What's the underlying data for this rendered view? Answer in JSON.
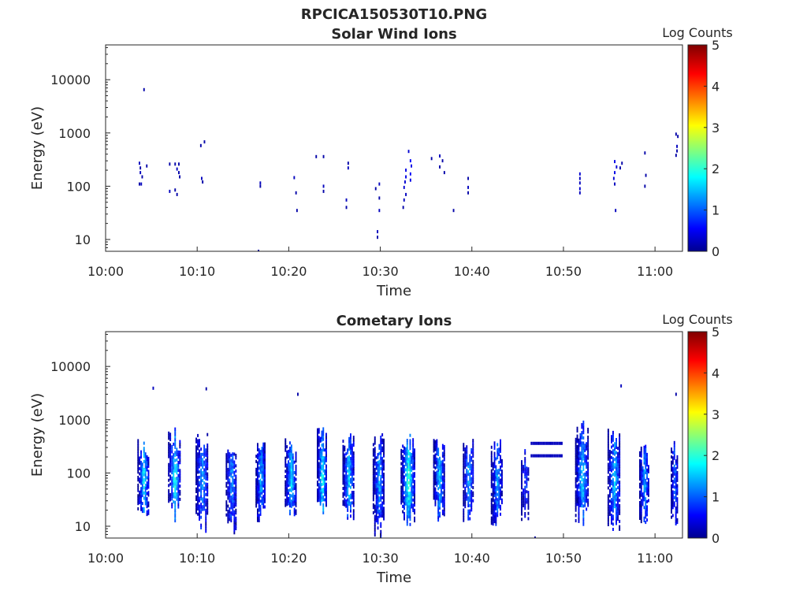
{
  "figure": {
    "filename_title": "RPCICA150530T10.PNG"
  },
  "chart_data": [
    {
      "type": "heatmap",
      "title": "Solar Wind Ions",
      "xlabel": "Time",
      "ylabel": "Energy (eV)",
      "x_ticks": [
        "10:00",
        "10:10",
        "10:20",
        "10:30",
        "10:40",
        "10:50",
        "11:00"
      ],
      "x_tick_minutes": [
        0,
        10,
        20,
        30,
        40,
        50,
        60
      ],
      "xlim_minutes": [
        0,
        63
      ],
      "y_scale": "log",
      "y_ticks": [
        10,
        100,
        1000,
        10000
      ],
      "ylim": [
        6,
        45000
      ],
      "colorbar": {
        "label": "Log Counts",
        "ticks": [
          0,
          1,
          2,
          3,
          4,
          5
        ],
        "range": [
          0,
          5
        ],
        "colormap": "jet"
      },
      "grid": false,
      "cells": [
        [
          4.2,
          6500,
          0.2
        ],
        [
          3.7,
          270,
          0.3
        ],
        [
          3.8,
          220,
          0.2
        ],
        [
          3.8,
          180,
          0.3
        ],
        [
          4.0,
          150,
          0.2
        ],
        [
          3.7,
          110,
          0.2
        ],
        [
          3.9,
          110,
          0.3
        ],
        [
          4.5,
          240,
          0.2
        ],
        [
          7.0,
          260,
          0.2
        ],
        [
          7.6,
          260,
          0.2
        ],
        [
          8.0,
          260,
          0.2
        ],
        [
          7.8,
          210,
          0.3
        ],
        [
          8.0,
          180,
          0.2
        ],
        [
          8.1,
          150,
          0.2
        ],
        [
          7.0,
          80,
          0.3
        ],
        [
          7.6,
          85,
          0.2
        ],
        [
          7.8,
          70,
          0.2
        ],
        [
          10.4,
          580,
          0.2
        ],
        [
          10.8,
          680,
          0.2
        ],
        [
          10.5,
          140,
          0.3
        ],
        [
          10.6,
          120,
          0.2
        ],
        [
          16.9,
          115,
          0.3
        ],
        [
          16.9,
          100,
          0.2
        ],
        [
          16.7,
          6,
          0.2
        ],
        [
          20.6,
          145,
          0.3
        ],
        [
          20.8,
          75,
          0.2
        ],
        [
          20.9,
          35,
          0.2
        ],
        [
          23.0,
          360,
          0.2
        ],
        [
          23.8,
          360,
          0.2
        ],
        [
          23.8,
          100,
          0.3
        ],
        [
          23.8,
          80,
          0.2
        ],
        [
          26.5,
          270,
          0.2
        ],
        [
          26.5,
          220,
          0.3
        ],
        [
          26.3,
          55,
          0.3
        ],
        [
          26.3,
          40,
          0.2
        ],
        [
          29.5,
          90,
          0.2
        ],
        [
          29.9,
          110,
          0.3
        ],
        [
          29.9,
          60,
          0.2
        ],
        [
          29.9,
          35,
          0.3
        ],
        [
          29.7,
          14,
          0.3
        ],
        [
          29.7,
          11,
          0.2
        ],
        [
          32.8,
          200,
          0.5
        ],
        [
          32.8,
          150,
          0.5
        ],
        [
          32.7,
          120,
          0.4
        ],
        [
          33.3,
          300,
          0.6
        ],
        [
          33.4,
          240,
          0.5
        ],
        [
          33.3,
          170,
          0.6
        ],
        [
          33.3,
          130,
          0.5
        ],
        [
          32.6,
          95,
          0.4
        ],
        [
          32.8,
          70,
          0.3
        ],
        [
          32.6,
          55,
          0.3
        ],
        [
          33.1,
          450,
          0.4
        ],
        [
          32.5,
          40,
          0.2
        ],
        [
          35.6,
          330,
          0.2
        ],
        [
          36.5,
          370,
          0.3
        ],
        [
          36.8,
          300,
          0.2
        ],
        [
          36.5,
          230,
          0.2
        ],
        [
          37.0,
          180,
          0.2
        ],
        [
          38.0,
          35,
          0.2
        ],
        [
          39.6,
          140,
          0.2
        ],
        [
          39.6,
          95,
          0.3
        ],
        [
          39.6,
          75,
          0.2
        ],
        [
          51.8,
          170,
          0.4
        ],
        [
          51.8,
          140,
          0.3
        ],
        [
          51.8,
          115,
          0.3
        ],
        [
          51.8,
          90,
          0.4
        ],
        [
          51.8,
          75,
          0.3
        ],
        [
          55.6,
          290,
          0.5
        ],
        [
          55.8,
          230,
          0.4
        ],
        [
          55.6,
          180,
          0.5
        ],
        [
          55.5,
          140,
          0.4
        ],
        [
          55.6,
          110,
          0.3
        ],
        [
          56.4,
          270,
          0.2
        ],
        [
          56.2,
          220,
          0.2
        ],
        [
          55.7,
          35,
          0.3
        ],
        [
          58.9,
          420,
          0.2
        ],
        [
          59.0,
          160,
          0.2
        ],
        [
          58.9,
          100,
          0.2
        ],
        [
          62.3,
          950,
          0.2
        ],
        [
          62.5,
          860,
          0.2
        ],
        [
          62.4,
          560,
          0.3
        ],
        [
          62.4,
          460,
          0.2
        ],
        [
          62.3,
          380,
          0.2
        ]
      ]
    },
    {
      "type": "heatmap",
      "title": "Cometary Ions",
      "xlabel": "Time",
      "ylabel": "Energy (eV)",
      "x_ticks": [
        "10:00",
        "10:10",
        "10:20",
        "10:30",
        "10:40",
        "10:50",
        "11:00"
      ],
      "x_tick_minutes": [
        0,
        10,
        20,
        30,
        40,
        50,
        60
      ],
      "xlim_minutes": [
        0,
        63
      ],
      "y_scale": "log",
      "y_ticks": [
        10,
        100,
        1000,
        10000
      ],
      "ylim": [
        6,
        45000
      ],
      "colorbar": {
        "label": "Log Counts",
        "ticks": [
          0,
          1,
          2,
          3,
          4,
          5
        ],
        "range": [
          0,
          5
        ],
        "colormap": "jet"
      },
      "grid": false,
      "bursts": [
        {
          "t": 4.2,
          "width": 1.3,
          "emin": 10,
          "emax": 450,
          "peak": 1.9
        },
        {
          "t": 7.6,
          "width": 1.4,
          "emin": 12,
          "emax": 700,
          "peak": 2.0
        },
        {
          "t": 10.6,
          "width": 1.4,
          "emin": 8,
          "emax": 600,
          "peak": 1.6
        },
        {
          "t": 13.8,
          "width": 1.2,
          "emin": 7,
          "emax": 400,
          "peak": 1.5
        },
        {
          "t": 17.0,
          "width": 1.1,
          "emin": 10,
          "emax": 500,
          "peak": 1.6
        },
        {
          "t": 20.3,
          "width": 1.3,
          "emin": 10,
          "emax": 450,
          "peak": 1.8
        },
        {
          "t": 23.7,
          "width": 1.1,
          "emin": 12,
          "emax": 800,
          "peak": 2.2
        },
        {
          "t": 26.6,
          "width": 1.3,
          "emin": 10,
          "emax": 550,
          "peak": 1.8
        },
        {
          "t": 29.9,
          "width": 1.3,
          "emin": 6,
          "emax": 600,
          "peak": 1.6
        },
        {
          "t": 33.1,
          "width": 1.6,
          "emin": 10,
          "emax": 600,
          "peak": 2.3
        },
        {
          "t": 36.5,
          "width": 1.3,
          "emin": 12,
          "emax": 450,
          "peak": 1.7
        },
        {
          "t": 39.7,
          "width": 1.2,
          "emin": 12,
          "emax": 450,
          "peak": 1.6
        },
        {
          "t": 42.8,
          "width": 1.3,
          "emin": 10,
          "emax": 450,
          "peak": 1.5
        },
        {
          "t": 45.9,
          "width": 0.9,
          "emin": 10,
          "emax": 300,
          "peak": 1.0
        },
        {
          "t": 52.1,
          "width": 1.5,
          "emin": 10,
          "emax": 1000,
          "peak": 1.9
        },
        {
          "t": 55.6,
          "width": 1.4,
          "emin": 8,
          "emax": 700,
          "peak": 1.8
        },
        {
          "t": 58.9,
          "width": 1.1,
          "emin": 10,
          "emax": 350,
          "peak": 1.6
        },
        {
          "t": 62.2,
          "width": 0.8,
          "emin": 10,
          "emax": 400,
          "peak": 1.3
        }
      ],
      "bands": [
        {
          "t0": 46.5,
          "t1": 49.9,
          "e": 360,
          "level": 0.3
        },
        {
          "t0": 46.5,
          "t1": 49.9,
          "e": 210,
          "level": 0.3
        }
      ],
      "isolated": [
        [
          5.2,
          3900,
          0.3
        ],
        [
          11.0,
          3800,
          0.2
        ],
        [
          21.0,
          3000,
          0.2
        ],
        [
          56.3,
          4300,
          0.3
        ],
        [
          62.3,
          3000,
          0.2
        ],
        [
          46.9,
          6,
          0.2
        ]
      ]
    }
  ]
}
